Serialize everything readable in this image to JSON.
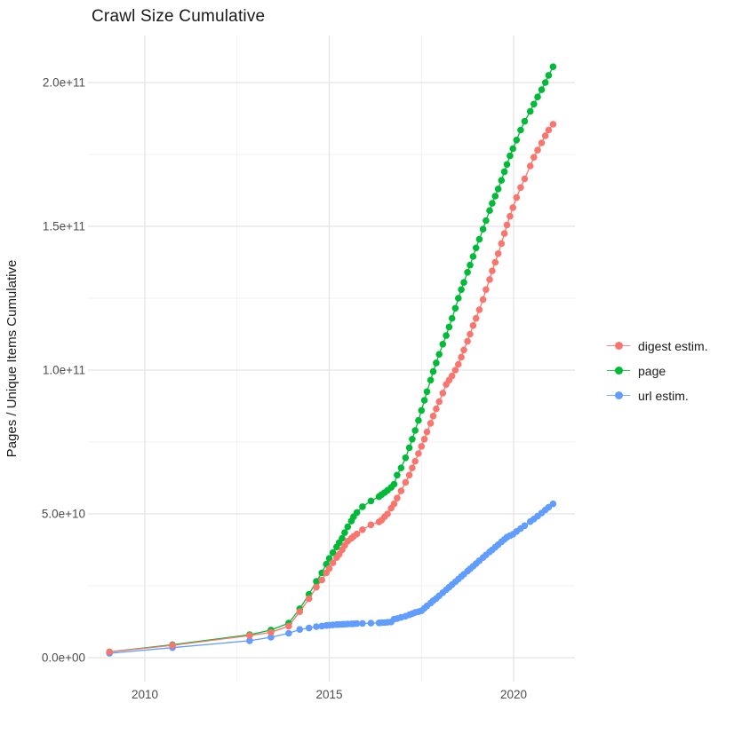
{
  "title": "Crawl Size Cumulative",
  "chart_data": {
    "type": "line",
    "title": "Crawl Size Cumulative",
    "xlabel": "",
    "ylabel": "Pages / Unique Items Cumulative",
    "legend_position": "right",
    "grid": true,
    "background": "#ffffff",
    "grid_major_color": "#e3e3e3",
    "grid_minor_color": "#f0f0f0",
    "x_ticks": {
      "values": [
        2010,
        2015,
        2020
      ],
      "labels": [
        "2010",
        "2015",
        "2020"
      ],
      "minor": [
        2012.5,
        2017.5
      ]
    },
    "y_ticks": {
      "values_e9": [
        0,
        50,
        100,
        150,
        200
      ],
      "labels": [
        "0.0e+00",
        "5.0e+10",
        "1.0e+11",
        "1.5e+11",
        "2.0e+11"
      ],
      "minor_e9": [
        25,
        75,
        125,
        175
      ]
    },
    "xlim": [
      2008.46,
      2021.67
    ],
    "ylim_e9": [
      -10.3,
      216
    ],
    "x_years": [
      2009.04,
      2010.75,
      2012.84,
      2013.42,
      2013.9,
      2014.2,
      2014.45,
      2014.65,
      2014.8,
      2014.92,
      2015.0,
      2015.1,
      2015.2,
      2015.27,
      2015.35,
      2015.42,
      2015.5,
      2015.6,
      2015.66,
      2015.75,
      2015.9,
      2016.13,
      2016.35,
      2016.42,
      2016.5,
      2016.58,
      2016.68,
      2016.76,
      2016.84,
      2016.95,
      2017.07,
      2017.17,
      2017.25,
      2017.33,
      2017.42,
      2017.5,
      2017.58,
      2017.65,
      2017.75,
      2017.82,
      2017.9,
      2017.98,
      2018.08,
      2018.17,
      2018.25,
      2018.33,
      2018.42,
      2018.5,
      2018.58,
      2018.65,
      2018.75,
      2018.82,
      2018.9,
      2018.98,
      2019.07,
      2019.17,
      2019.25,
      2019.35,
      2019.42,
      2019.5,
      2019.58,
      2019.67,
      2019.75,
      2019.82,
      2019.9,
      2019.98,
      2020.08,
      2020.19,
      2020.3,
      2020.45,
      2020.55,
      2020.65,
      2020.76,
      2020.86,
      2020.95,
      2021.07
    ],
    "series": [
      {
        "name": "digest estim.",
        "color": "#F8766D",
        "values_e9": [
          2,
          4.3,
          7.7,
          8.8,
          11,
          16,
          20.5,
          24.5,
          27,
          29.5,
          31,
          33,
          34.8,
          36,
          37.5,
          39,
          40.5,
          41.5,
          42.2,
          43,
          44.5,
          46.2,
          47.2,
          47.8,
          49,
          50,
          52,
          53.5,
          55.5,
          58,
          61,
          63.5,
          66,
          68.3,
          71,
          73.5,
          76,
          78.5,
          81.5,
          84,
          86.5,
          89,
          92,
          95,
          96.5,
          98,
          100,
          102,
          104.5,
          107,
          110,
          112.5,
          115.5,
          118,
          121,
          124.5,
          128,
          131.5,
          134.5,
          137.5,
          140.5,
          144,
          147.5,
          150.5,
          153.5,
          156.5,
          160,
          163.5,
          166.5,
          171,
          174,
          176.5,
          179,
          181.5,
          183.5,
          185.5
        ]
      },
      {
        "name": "page",
        "color": "#00BA38",
        "values_e9": [
          2,
          4.5,
          8,
          9.6,
          12,
          17,
          22,
          26.5,
          29.5,
          32.5,
          34.5,
          36.5,
          38.5,
          40,
          41.5,
          43.5,
          45.5,
          47.5,
          49,
          50.5,
          52.5,
          54.5,
          56,
          56.7,
          57.4,
          58.2,
          59.2,
          60.3,
          63.5,
          66,
          69.5,
          73,
          76,
          79,
          82.5,
          86,
          89.5,
          92.5,
          96.5,
          99.5,
          102.5,
          105.5,
          109,
          112,
          115,
          118,
          121.5,
          125,
          128,
          130.5,
          134,
          136.5,
          139.5,
          142.5,
          145.5,
          149,
          152,
          155.5,
          158,
          160.5,
          163,
          166,
          169,
          171.5,
          174.5,
          177,
          180,
          183.5,
          186.5,
          190,
          192.5,
          195,
          197.5,
          200,
          202.5,
          205.5
        ]
      },
      {
        "name": "url estim.",
        "color": "#619CFF",
        "values_e9": [
          1.5,
          3.5,
          5.9,
          7.1,
          8.5,
          9.8,
          10.3,
          10.8,
          11,
          11.2,
          11.3,
          11.4,
          11.5,
          11.55,
          11.6,
          11.65,
          11.7,
          11.75,
          11.8,
          11.85,
          11.9,
          12,
          12.1,
          12.15,
          12.2,
          12.3,
          12.4,
          13.4,
          13.6,
          14,
          14.4,
          14.9,
          15.3,
          15.7,
          16,
          16.3,
          17.2,
          18,
          19,
          19.8,
          20.6,
          21.5,
          22.6,
          23.6,
          24.5,
          25.4,
          26.4,
          27.3,
          28.2,
          29,
          30.1,
          30.9,
          31.8,
          32.7,
          33.7,
          34.8,
          35.7,
          36.8,
          37.5,
          38.4,
          39.3,
          40.3,
          41.1,
          41.9,
          42.4,
          42.9,
          43.9,
          44.9,
          45.9,
          47.3,
          48.2,
          49.2,
          50.3,
          51.4,
          52.3,
          53.5
        ]
      }
    ]
  }
}
